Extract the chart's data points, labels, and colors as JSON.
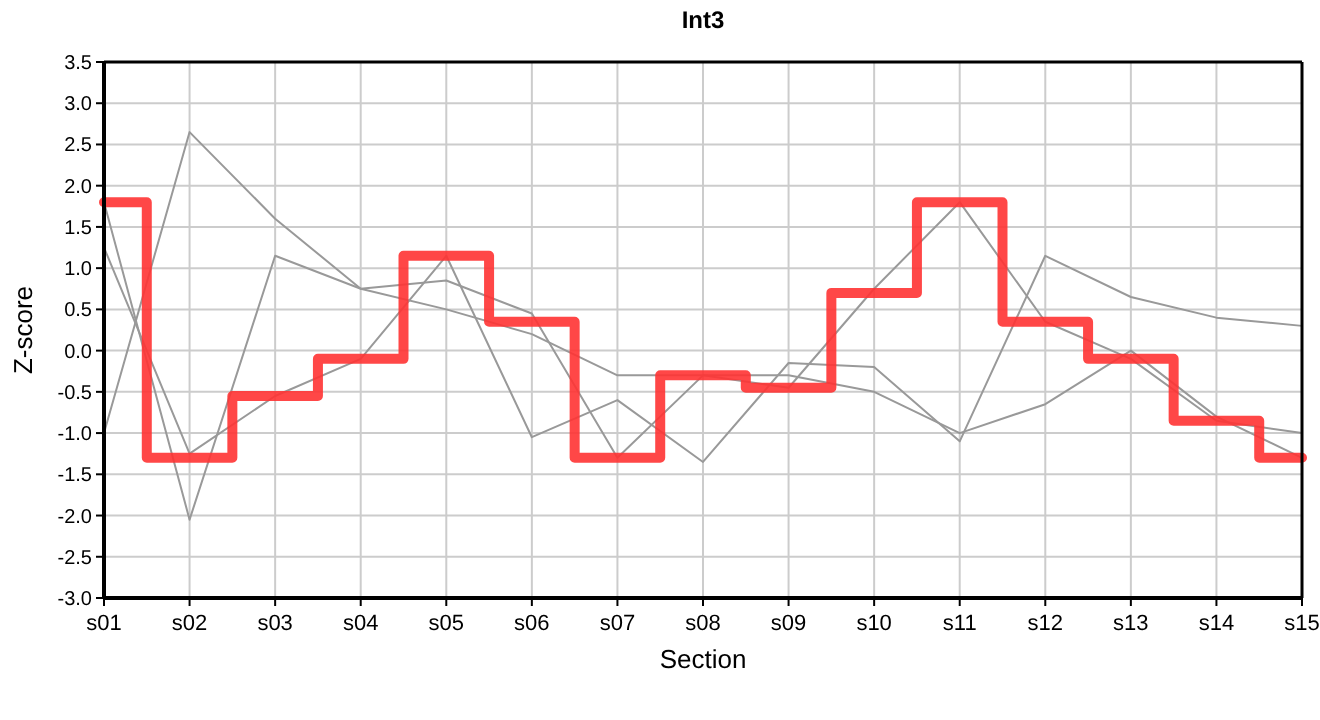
{
  "chart_data": {
    "type": "line",
    "title": "Int3",
    "xlabel": "Section",
    "ylabel": "Z-score",
    "categories": [
      "s01",
      "s02",
      "s03",
      "s04",
      "s05",
      "s06",
      "s07",
      "s08",
      "s09",
      "s10",
      "s11",
      "s12",
      "s13",
      "s14",
      "s15"
    ],
    "series": [
      {
        "color": "#999999",
        "values": [
          -1.0,
          2.65,
          1.6,
          0.75,
          0.5,
          0.2,
          -0.3,
          -0.3,
          -0.3,
          -0.5,
          -1.0,
          -0.65,
          0.0,
          -0.8,
          -1.3
        ]
      },
      {
        "color": "#999999",
        "values": [
          1.8,
          -2.05,
          1.15,
          0.75,
          0.85,
          0.45,
          -1.3,
          -0.3,
          -0.45,
          0.75,
          1.8,
          0.35,
          -0.1,
          -0.85,
          -1.0
        ]
      },
      {
        "color": "#999999",
        "values": [
          1.25,
          -1.25,
          -0.55,
          -0.1,
          1.15,
          -1.05,
          -0.6,
          -1.35,
          -0.15,
          -0.2,
          -1.1,
          1.15,
          0.65,
          0.4,
          0.3
        ]
      },
      {
        "type": "step",
        "color": "#ff3333",
        "values": [
          1.8,
          -1.3,
          -0.55,
          -0.1,
          1.15,
          0.35,
          -1.3,
          -0.3,
          -0.45,
          0.7,
          1.8,
          0.35,
          -0.1,
          -0.85,
          -1.3
        ]
      }
    ],
    "ylim": [
      -3,
      3.5
    ],
    "yticks": [
      {
        "value": -3,
        "label": "-3.0"
      },
      {
        "value": -2.5,
        "label": "-2.5"
      },
      {
        "value": -2,
        "label": "-2.0"
      },
      {
        "value": -1.5,
        "label": "-1.5"
      },
      {
        "value": -1,
        "label": "-1.0"
      },
      {
        "value": -0.5,
        "label": "-0.5"
      },
      {
        "value": 0,
        "label": "0.0"
      },
      {
        "value": 0.5,
        "label": "0.5"
      },
      {
        "value": 1,
        "label": "1.0"
      },
      {
        "value": 1.5,
        "label": "1.5"
      },
      {
        "value": 2,
        "label": "2.0"
      },
      {
        "value": 2.5,
        "label": "2.5"
      },
      {
        "value": 3,
        "label": "3.0"
      },
      {
        "value": 3.5,
        "label": "3.5"
      }
    ],
    "grid": true,
    "marker": "none",
    "line_style": "solid"
  }
}
